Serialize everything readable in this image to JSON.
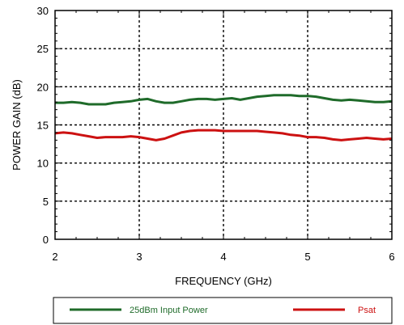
{
  "chart_data": {
    "type": "line",
    "title": "",
    "xlabel": "FREQUENCY (GHz)",
    "ylabel": "POWER GAIN (dB)",
    "xlim": [
      2,
      6
    ],
    "ylim": [
      0,
      30
    ],
    "xticks": [
      2,
      3,
      4,
      5,
      6
    ],
    "yticks": [
      0,
      5,
      10,
      15,
      20,
      25,
      30
    ],
    "grid": true,
    "legend_position": "bottom",
    "series": [
      {
        "name": "25dBm Input Power",
        "color": "#1f6b2a",
        "x": [
          2.0,
          2.1,
          2.2,
          2.3,
          2.4,
          2.5,
          2.6,
          2.7,
          2.8,
          2.9,
          3.0,
          3.1,
          3.2,
          3.3,
          3.4,
          3.5,
          3.6,
          3.7,
          3.8,
          3.9,
          4.0,
          4.1,
          4.2,
          4.3,
          4.4,
          4.5,
          4.6,
          4.7,
          4.8,
          4.9,
          5.0,
          5.1,
          5.2,
          5.3,
          5.4,
          5.5,
          5.6,
          5.7,
          5.8,
          5.9,
          6.0
        ],
        "y": [
          17.9,
          17.9,
          18.0,
          17.9,
          17.7,
          17.7,
          17.7,
          17.9,
          18.0,
          18.1,
          18.3,
          18.4,
          18.1,
          17.9,
          17.9,
          18.1,
          18.3,
          18.4,
          18.4,
          18.3,
          18.4,
          18.5,
          18.3,
          18.5,
          18.7,
          18.8,
          18.9,
          18.9,
          18.9,
          18.8,
          18.8,
          18.7,
          18.5,
          18.3,
          18.2,
          18.3,
          18.2,
          18.1,
          18.0,
          18.0,
          18.1
        ]
      },
      {
        "name": "Psat",
        "color": "#cc1111",
        "x": [
          2.0,
          2.1,
          2.2,
          2.3,
          2.4,
          2.5,
          2.6,
          2.7,
          2.8,
          2.9,
          3.0,
          3.1,
          3.2,
          3.3,
          3.4,
          3.5,
          3.6,
          3.7,
          3.8,
          3.9,
          4.0,
          4.1,
          4.2,
          4.3,
          4.4,
          4.5,
          4.6,
          4.7,
          4.8,
          4.9,
          5.0,
          5.1,
          5.2,
          5.3,
          5.4,
          5.5,
          5.6,
          5.7,
          5.8,
          5.9,
          6.0
        ],
        "y": [
          13.9,
          14.0,
          13.9,
          13.7,
          13.5,
          13.3,
          13.4,
          13.4,
          13.4,
          13.5,
          13.4,
          13.2,
          13.0,
          13.2,
          13.6,
          14.0,
          14.2,
          14.3,
          14.3,
          14.3,
          14.2,
          14.2,
          14.2,
          14.2,
          14.2,
          14.1,
          14.0,
          13.9,
          13.7,
          13.6,
          13.4,
          13.4,
          13.3,
          13.1,
          13.0,
          13.1,
          13.2,
          13.3,
          13.2,
          13.1,
          13.2
        ]
      }
    ]
  }
}
